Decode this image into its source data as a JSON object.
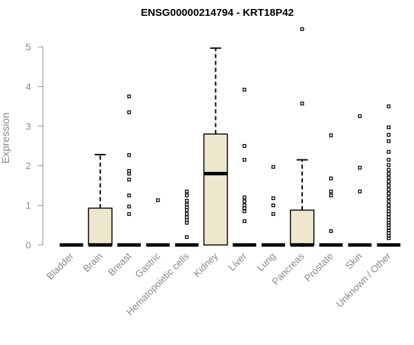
{
  "chart_data": {
    "type": "boxplot",
    "title": "ENSG00000214794 - KRT18P42",
    "ylabel": "Expression",
    "xlabel": "",
    "ylim": [
      0,
      5
    ],
    "yticks": [
      "0",
      "1",
      "2",
      "3",
      "4",
      "5"
    ],
    "box_color": "#EDE7CE",
    "grid": false,
    "categories": [
      "Bladder",
      "Brain",
      "Breast",
      "Gastric",
      "Hematopoietic cells",
      "Kidney",
      "Liver",
      "Lung",
      "Pancreas",
      "Prostate",
      "Skin",
      "Unknown / Other"
    ],
    "boxes": [
      {
        "q1": 0,
        "median": 0,
        "q3": 0,
        "whisker_low": 0,
        "whisker_high": 0,
        "outliers": []
      },
      {
        "q1": 0,
        "median": 0,
        "q3": 0.93,
        "whisker_low": 0,
        "whisker_high": 2.28,
        "outliers": []
      },
      {
        "q1": 0,
        "median": 0,
        "q3": 0,
        "whisker_low": 0,
        "whisker_high": 0,
        "outliers": [
          3.75,
          3.35,
          2.27,
          1.87,
          1.8,
          1.65,
          1.25,
          0.97,
          0.78
        ]
      },
      {
        "q1": 0,
        "median": 0,
        "q3": 0,
        "whisker_low": 0,
        "whisker_high": 0,
        "outliers": [
          1.13
        ]
      },
      {
        "q1": 0,
        "median": 0,
        "q3": 0,
        "whisker_low": 0,
        "whisker_high": 0,
        "outliers": [
          1.35,
          1.25,
          1.12,
          1.02,
          0.95,
          0.88,
          0.78,
          0.7,
          0.63,
          0.56,
          0.2
        ]
      },
      {
        "q1": 0,
        "median": 1.8,
        "q3": 2.8,
        "whisker_low": 0,
        "whisker_high": 4.97,
        "outliers": []
      },
      {
        "q1": 0,
        "median": 0,
        "q3": 0,
        "whisker_low": 0,
        "whisker_high": 0,
        "outliers": [
          3.92,
          2.5,
          2.15,
          1.2,
          1.1,
          1.0,
          0.93,
          0.85,
          0.6
        ]
      },
      {
        "q1": 0,
        "median": 0,
        "q3": 0,
        "whisker_low": 0,
        "whisker_high": 0,
        "outliers": [
          1.97,
          1.18,
          1.0,
          0.78
        ]
      },
      {
        "q1": 0,
        "median": 0,
        "q3": 0.88,
        "whisker_low": 0,
        "whisker_high": 2.15,
        "outliers": [
          5.45,
          3.57,
          0.0
        ]
      },
      {
        "q1": 0,
        "median": 0,
        "q3": 0,
        "whisker_low": 0,
        "whisker_high": 0,
        "outliers": [
          2.77,
          1.68,
          1.35,
          1.25,
          0.35
        ]
      },
      {
        "q1": 0,
        "median": 0,
        "q3": 0,
        "whisker_low": 0,
        "whisker_high": 0,
        "outliers": [
          3.25,
          1.95,
          1.35
        ]
      },
      {
        "q1": 0,
        "median": 0,
        "q3": 0,
        "whisker_low": 0,
        "whisker_high": 0,
        "outliers": [
          3.5,
          2.97,
          2.78,
          2.62,
          2.35,
          2.15,
          2.02,
          1.9,
          1.8,
          1.7,
          1.6,
          1.5,
          1.4,
          1.3,
          1.2,
          1.1,
          1.0,
          0.92,
          0.85,
          0.78,
          0.7,
          0.63,
          0.56,
          0.5,
          0.43,
          0.37,
          0.3,
          0.23,
          0.17
        ]
      }
    ]
  }
}
